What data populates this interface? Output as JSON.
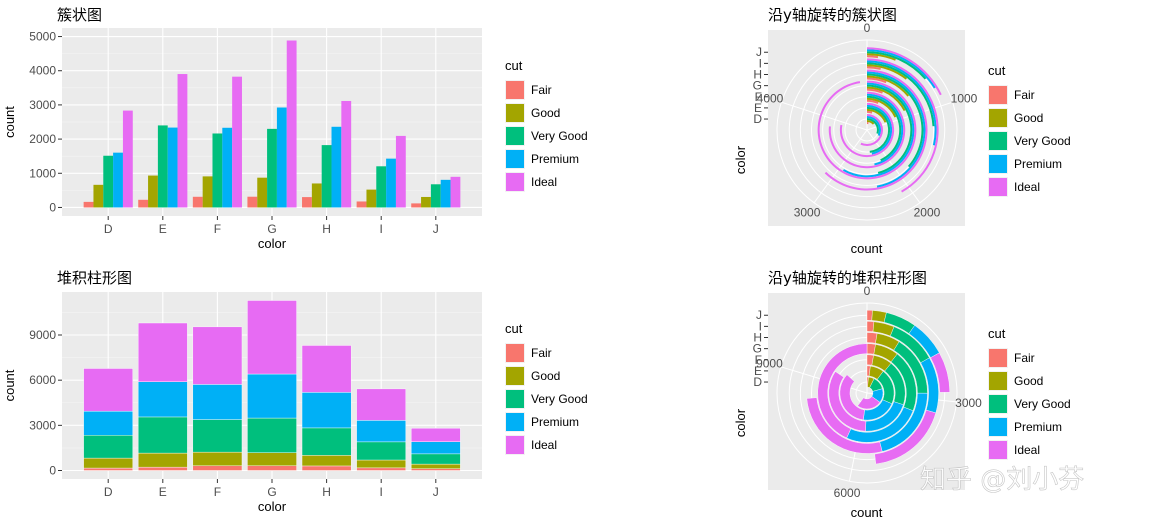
{
  "legend": {
    "title": "cut",
    "items": [
      {
        "label": "Fair",
        "color": "#F8766D"
      },
      {
        "label": "Good",
        "color": "#A3A500"
      },
      {
        "label": "Very Good",
        "color": "#00BF7D"
      },
      {
        "label": "Premium",
        "color": "#00B0F6"
      },
      {
        "label": "Ideal",
        "color": "#E76BF3"
      }
    ]
  },
  "watermark": "知乎 @刘小芬",
  "chart_data": [
    {
      "type": "bar",
      "title": "簇状图",
      "position": "dodge",
      "xlabel": "color",
      "ylabel": "count",
      "categories": [
        "D",
        "E",
        "F",
        "G",
        "H",
        "I",
        "J"
      ],
      "ylim": [
        0,
        5000
      ],
      "yticks": [
        0,
        1000,
        2000,
        3000,
        4000,
        5000
      ],
      "series": [
        {
          "name": "Fair",
          "values": [
            163,
            224,
            312,
            314,
            303,
            175,
            119
          ]
        },
        {
          "name": "Good",
          "values": [
            662,
            933,
            909,
            871,
            702,
            522,
            307
          ]
        },
        {
          "name": "Very Good",
          "values": [
            1513,
            2400,
            2164,
            2299,
            1824,
            1204,
            678
          ]
        },
        {
          "name": "Premium",
          "values": [
            1603,
            2337,
            2331,
            2924,
            2360,
            1428,
            808
          ]
        },
        {
          "name": "Ideal",
          "values": [
            2834,
            3903,
            3826,
            4884,
            3115,
            2093,
            896
          ]
        }
      ],
      "legend": "right",
      "grid": true
    },
    {
      "type": "bar",
      "title": "沿y轴旋转的簇状图",
      "position": "dodge",
      "coord": "polar (theta = y)",
      "xlabel": "count",
      "ylabel": "color",
      "categories": [
        "D",
        "E",
        "F",
        "G",
        "H",
        "I",
        "J"
      ],
      "theta_ticks": [
        0,
        1000,
        2000,
        3000,
        4000
      ],
      "theta_max": 5000,
      "series": [
        {
          "name": "Fair",
          "values": [
            163,
            224,
            312,
            314,
            303,
            175,
            119
          ]
        },
        {
          "name": "Good",
          "values": [
            662,
            933,
            909,
            871,
            702,
            522,
            307
          ]
        },
        {
          "name": "Very Good",
          "values": [
            1513,
            2400,
            2164,
            2299,
            1824,
            1204,
            678
          ]
        },
        {
          "name": "Premium",
          "values": [
            1603,
            2337,
            2331,
            2924,
            2360,
            1428,
            808
          ]
        },
        {
          "name": "Ideal",
          "values": [
            2834,
            3903,
            3826,
            4884,
            3115,
            2093,
            896
          ]
        }
      ],
      "legend": "right",
      "grid": true
    },
    {
      "type": "bar",
      "title": "堆积柱形图",
      "position": "stack",
      "xlabel": "color",
      "ylabel": "count",
      "categories": [
        "D",
        "E",
        "F",
        "G",
        "H",
        "I",
        "J"
      ],
      "ylim": [
        0,
        11292
      ],
      "yticks": [
        0,
        3000,
        6000,
        9000
      ],
      "series": [
        {
          "name": "Fair",
          "values": [
            163,
            224,
            312,
            314,
            303,
            175,
            119
          ]
        },
        {
          "name": "Good",
          "values": [
            662,
            933,
            909,
            871,
            702,
            522,
            307
          ]
        },
        {
          "name": "Very Good",
          "values": [
            1513,
            2400,
            2164,
            2299,
            1824,
            1204,
            678
          ]
        },
        {
          "name": "Premium",
          "values": [
            1603,
            2337,
            2331,
            2924,
            2360,
            1428,
            808
          ]
        },
        {
          "name": "Ideal",
          "values": [
            2834,
            3903,
            3826,
            4884,
            3115,
            2093,
            896
          ]
        }
      ],
      "legend": "right",
      "grid": true
    },
    {
      "type": "bar",
      "title": "沿y轴旋转的堆积柱形图",
      "position": "stack",
      "coord": "polar (theta = y)",
      "xlabel": "count",
      "ylabel": "color",
      "categories": [
        "D",
        "E",
        "F",
        "G",
        "H",
        "I",
        "J"
      ],
      "theta_ticks": [
        0,
        3000,
        6000,
        9000
      ],
      "theta_max": 11292,
      "series": [
        {
          "name": "Fair",
          "values": [
            163,
            224,
            312,
            314,
            303,
            175,
            119
          ]
        },
        {
          "name": "Good",
          "values": [
            662,
            933,
            909,
            871,
            702,
            522,
            307
          ]
        },
        {
          "name": "Very Good",
          "values": [
            1513,
            2400,
            2164,
            2299,
            1824,
            1204,
            678
          ]
        },
        {
          "name": "Premium",
          "values": [
            1603,
            2337,
            2331,
            2924,
            2360,
            1428,
            808
          ]
        },
        {
          "name": "Ideal",
          "values": [
            2834,
            3903,
            3826,
            4884,
            3115,
            2093,
            896
          ]
        }
      ],
      "legend": "right",
      "grid": true
    }
  ]
}
